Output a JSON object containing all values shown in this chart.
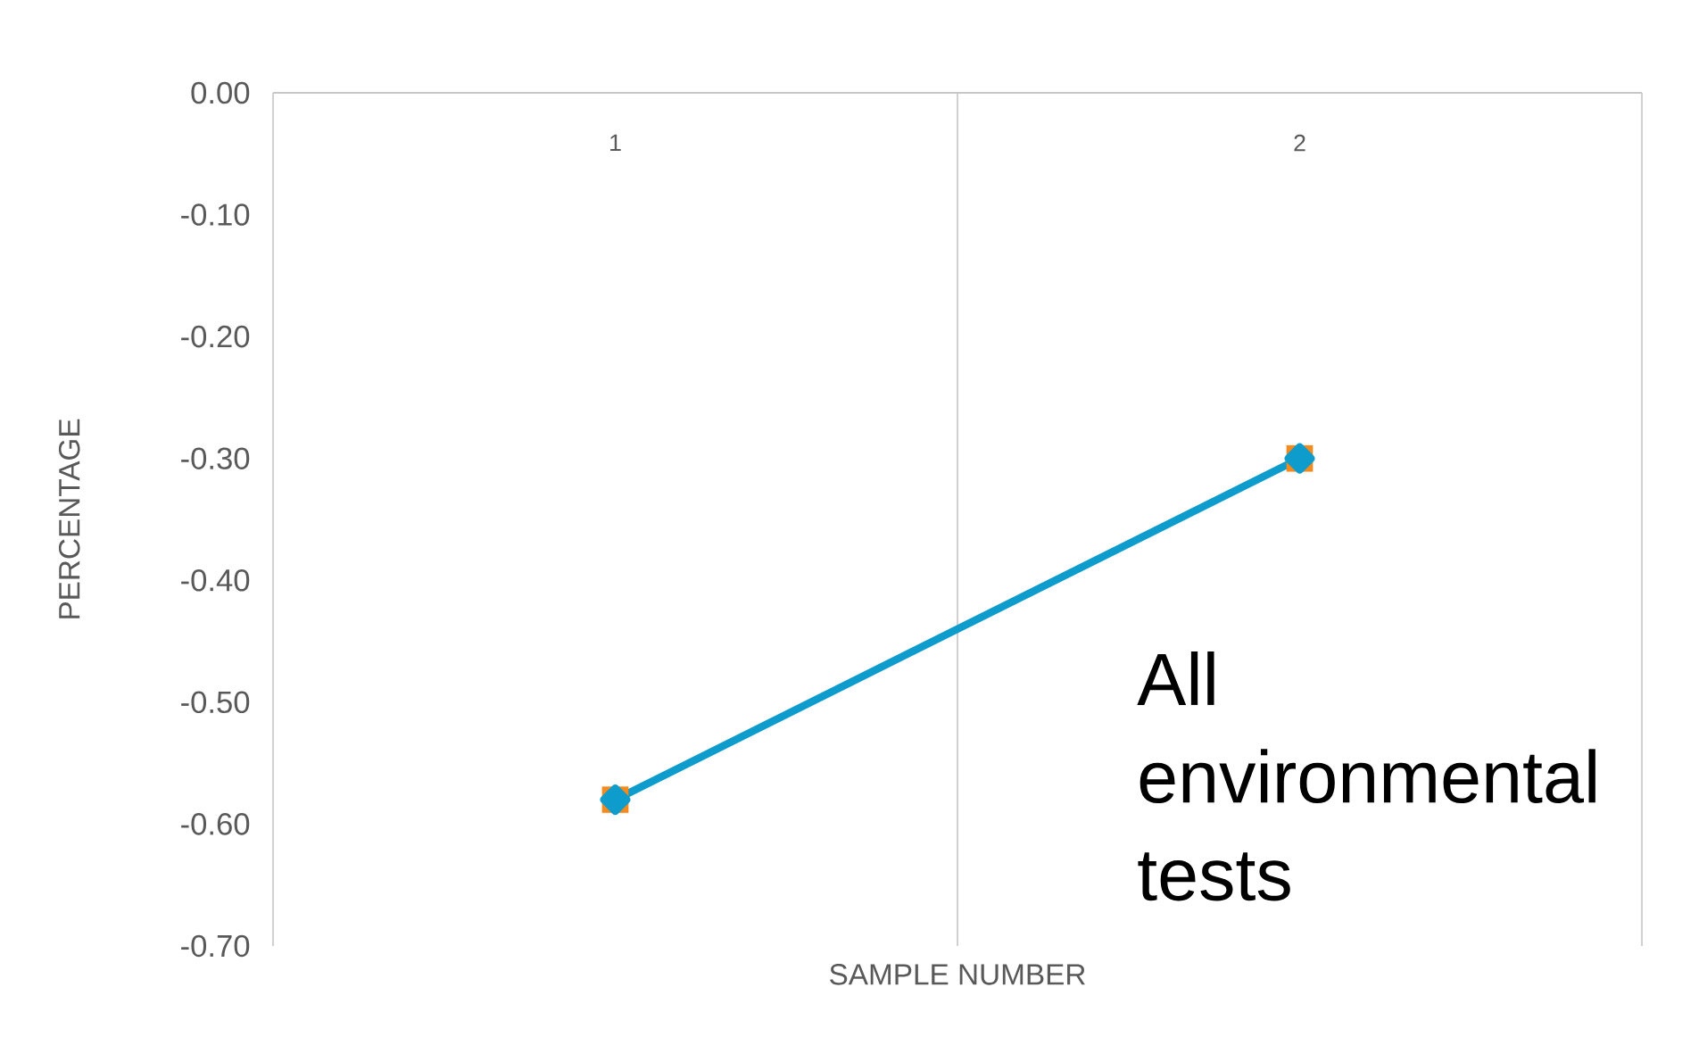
{
  "chart_data": {
    "type": "line",
    "xlabel": "SAMPLE NUMBER",
    "ylabel": "PERCENTAGE",
    "categories": [
      "1",
      "2"
    ],
    "series": [
      {
        "type": "scatter",
        "color": "#f58a1f",
        "marker": "square",
        "values": [
          -0.58,
          -0.3
        ]
      },
      {
        "color": "#0e9ccc",
        "marker": "diamond",
        "values": [
          -0.58,
          -0.3
        ]
      }
    ],
    "ylim": [
      -0.7,
      0
    ],
    "yticks": [
      {
        "value": 0,
        "label": "0.00"
      },
      {
        "value": -0.1,
        "label": "-0.10"
      },
      {
        "value": -0.2,
        "label": "-0.20"
      },
      {
        "value": -0.3,
        "label": "-0.30"
      },
      {
        "value": -0.4,
        "label": "-0.40"
      },
      {
        "value": -0.5,
        "label": "-0.50"
      },
      {
        "value": -0.6,
        "label": "-0.60"
      },
      {
        "value": -0.7,
        "label": "-0.70"
      }
    ],
    "grid": "x",
    "annotations": [
      "All environmental tests"
    ]
  }
}
